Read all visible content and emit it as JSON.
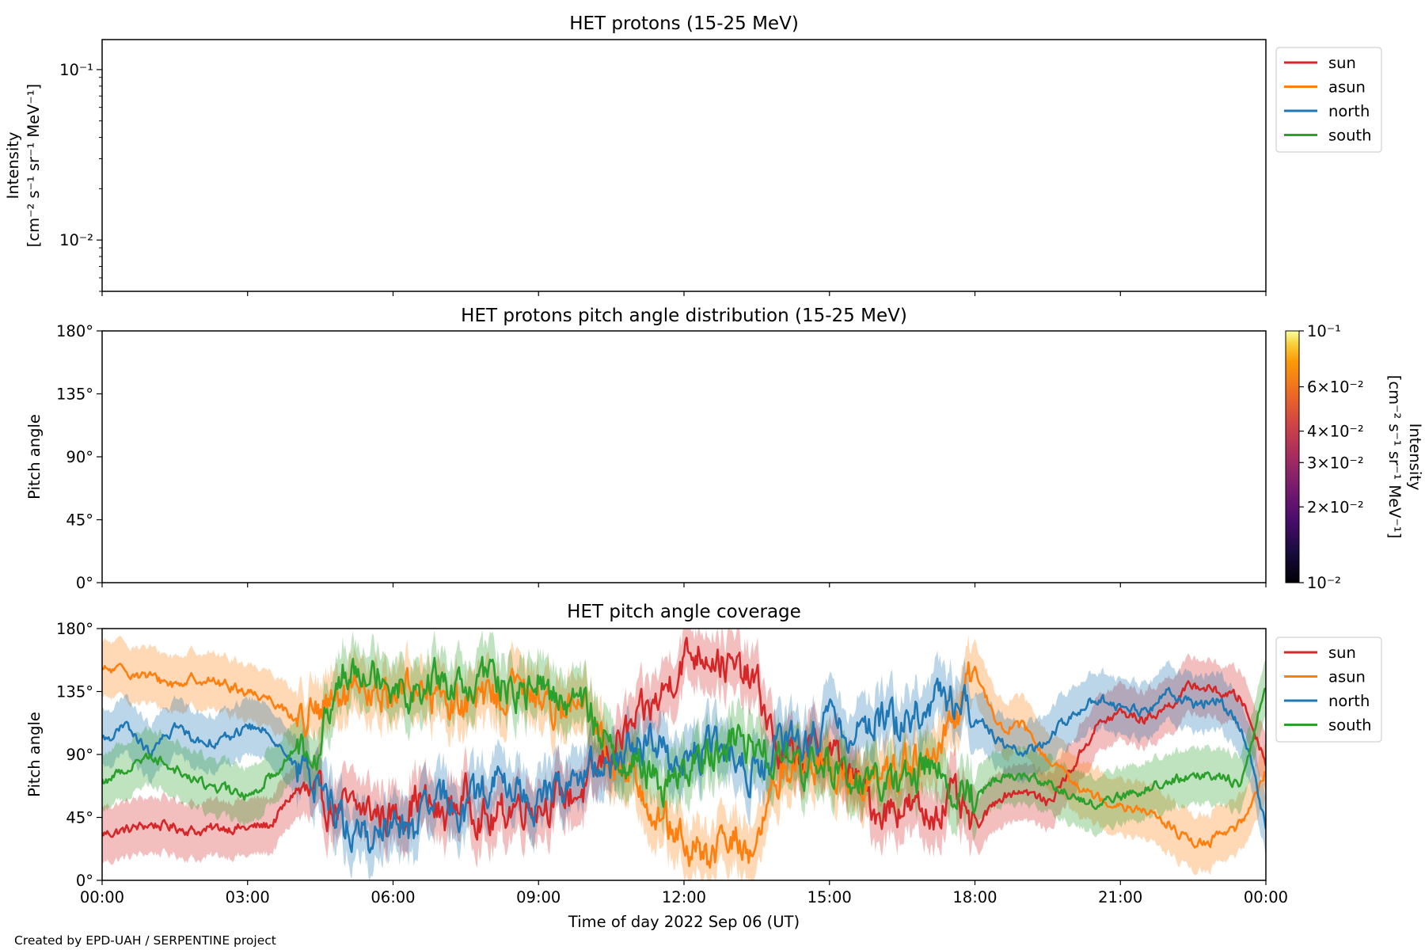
{
  "figure": {
    "credit": "Created by EPD-UAH / SERPENTINE project",
    "xlabel": "Time of day 2022 Sep 06 (UT)",
    "x_ticks": [
      "00:00",
      "03:00",
      "06:00",
      "09:00",
      "12:00",
      "15:00",
      "18:00",
      "21:00",
      "00:00"
    ],
    "x_range_hours": [
      0,
      24
    ]
  },
  "chart_data": [
    {
      "type": "line",
      "title": "HET protons (15-25 MeV)",
      "ylabel_lines": [
        "Intensity",
        "[cm⁻² s⁻¹ sr⁻¹ MeV⁻¹]"
      ],
      "yscale": "log",
      "ylim": [
        0.005,
        0.15
      ],
      "y_ticks": [
        {
          "value": 0.1,
          "label": "10⁻¹"
        },
        {
          "value": 0.01,
          "label": "10⁻²"
        }
      ],
      "legend": [
        "sun",
        "asun",
        "north",
        "south"
      ],
      "legend_position": "outside-right",
      "series": []
    },
    {
      "type": "heatmap",
      "title": "HET protons pitch angle distribution (15-25 MeV)",
      "ylabel": "Pitch angle",
      "ylim": [
        0,
        180
      ],
      "y_ticks": [
        "0°",
        "45°",
        "90°",
        "135°",
        "180°"
      ],
      "colorbar": {
        "scale": "log",
        "range": [
          0.01,
          0.1
        ],
        "colormap": "inferno",
        "label_lines": [
          "Intensity",
          "[cm⁻² s⁻¹ sr⁻¹ MeV⁻¹]"
        ],
        "ticks": [
          {
            "value": 0.1,
            "label": "10⁻¹"
          },
          {
            "value": 0.06,
            "label": "6×10⁻²"
          },
          {
            "value": 0.04,
            "label": "4×10⁻²"
          },
          {
            "value": 0.03,
            "label": "3×10⁻²"
          },
          {
            "value": 0.02,
            "label": "2×10⁻²"
          },
          {
            "value": 0.01,
            "label": "10⁻²"
          }
        ]
      },
      "values": []
    },
    {
      "type": "line",
      "title": "HET pitch angle coverage",
      "ylabel": "Pitch angle",
      "ylim": [
        0,
        180
      ],
      "y_ticks": [
        "0°",
        "45°",
        "90°",
        "135°",
        "180°"
      ],
      "legend_position": "outside-right",
      "x": [
        0,
        0.5,
        1,
        1.5,
        2,
        2.5,
        3,
        3.5,
        4,
        4.5,
        5,
        5.5,
        6,
        6.5,
        7,
        7.5,
        8,
        8.5,
        9,
        9.5,
        10,
        10.5,
        11,
        11.5,
        12,
        12.5,
        13,
        13.5,
        14,
        14.5,
        15,
        15.5,
        16,
        16.5,
        17,
        17.5,
        18,
        18.5,
        19,
        19.5,
        20,
        20.5,
        21,
        21.5,
        22,
        22.5,
        23,
        23.5,
        24
      ],
      "band_halfwidth_deg": 20,
      "series": [
        {
          "name": "sun",
          "color": "#d62728",
          "values": [
            33,
            36,
            40,
            38,
            35,
            38,
            37,
            40,
            65,
            55,
            50,
            50,
            45,
            60,
            45,
            60,
            40,
            55,
            55,
            60,
            65,
            95,
            110,
            130,
            160,
            165,
            150,
            140,
            85,
            90,
            95,
            70,
            50,
            55,
            45,
            60,
            35,
            60,
            65,
            55,
            80,
            110,
            120,
            115,
            125,
            140,
            135,
            130,
            85
          ]
        },
        {
          "name": "asun",
          "color": "#ff7f0e",
          "values": [
            150,
            150,
            145,
            140,
            145,
            140,
            135,
            130,
            115,
            120,
            130,
            130,
            135,
            140,
            130,
            125,
            130,
            140,
            130,
            125,
            120,
            85,
            75,
            45,
            25,
            15,
            30,
            20,
            80,
            85,
            80,
            75,
            70,
            85,
            80,
            105,
            150,
            110,
            110,
            85,
            70,
            60,
            55,
            50,
            40,
            25,
            30,
            40,
            80
          ]
        },
        {
          "name": "north",
          "color": "#1f77b4",
          "values": [
            100,
            110,
            90,
            110,
            100,
            100,
            110,
            105,
            80,
            70,
            40,
            30,
            40,
            35,
            60,
            50,
            70,
            65,
            55,
            70,
            75,
            85,
            95,
            100,
            85,
            95,
            90,
            75,
            95,
            100,
            110,
            105,
            120,
            110,
            125,
            130,
            120,
            100,
            90,
            100,
            120,
            130,
            125,
            120,
            135,
            125,
            130,
            110,
            40
          ]
        },
        {
          "name": "south",
          "color": "#2ca02c",
          "values": [
            70,
            80,
            90,
            80,
            70,
            65,
            60,
            75,
            95,
            100,
            150,
            160,
            140,
            135,
            145,
            130,
            150,
            130,
            140,
            130,
            125,
            90,
            85,
            70,
            75,
            90,
            100,
            95,
            90,
            80,
            80,
            75,
            70,
            65,
            85,
            70,
            60,
            75,
            75,
            70,
            60,
            55,
            60,
            65,
            70,
            75,
            75,
            70,
            140
          ]
        }
      ]
    }
  ]
}
